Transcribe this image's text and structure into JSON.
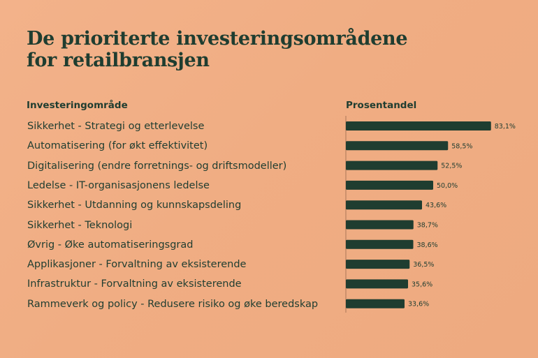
{
  "title": {
    "line1": "De prioriterte investeringsområdene",
    "line2": "for retailbransjen"
  },
  "chart_data": {
    "type": "bar",
    "orientation": "horizontal",
    "category_header": "Investeringområde",
    "value_header": "Prosentandel",
    "categories": [
      "Sikkerhet - Strategi og etterlevelse",
      "Automatisering (for økt effektivitet)",
      "Digitalisering (endre forretnings- og driftsmodeller)",
      "Ledelse - IT-organisasjonens ledelse",
      "Sikkerhet - Utdanning og kunnskapsdeling",
      "Sikkerhet - Teknologi",
      "Øvrig - Øke automatiseringsgrad",
      "Applikasjoner - Forvaltning av eksisterende",
      "Infrastruktur - Forvaltning av eksisterende",
      "Rammeverk og policy - Redusere risiko og øke beredskap"
    ],
    "values": [
      83.1,
      58.5,
      52.5,
      50.0,
      43.6,
      38.7,
      38.6,
      36.5,
      35.6,
      33.6
    ],
    "value_labels": [
      "83,1%",
      "58,5%",
      "52,5%",
      "50,0%",
      "43,6%",
      "38,7%",
      "38,6%",
      "36,5%",
      "35,6%",
      "33,6%"
    ],
    "xlim": [
      0,
      100
    ],
    "grid": false,
    "bar_color": "#1f3d30"
  }
}
